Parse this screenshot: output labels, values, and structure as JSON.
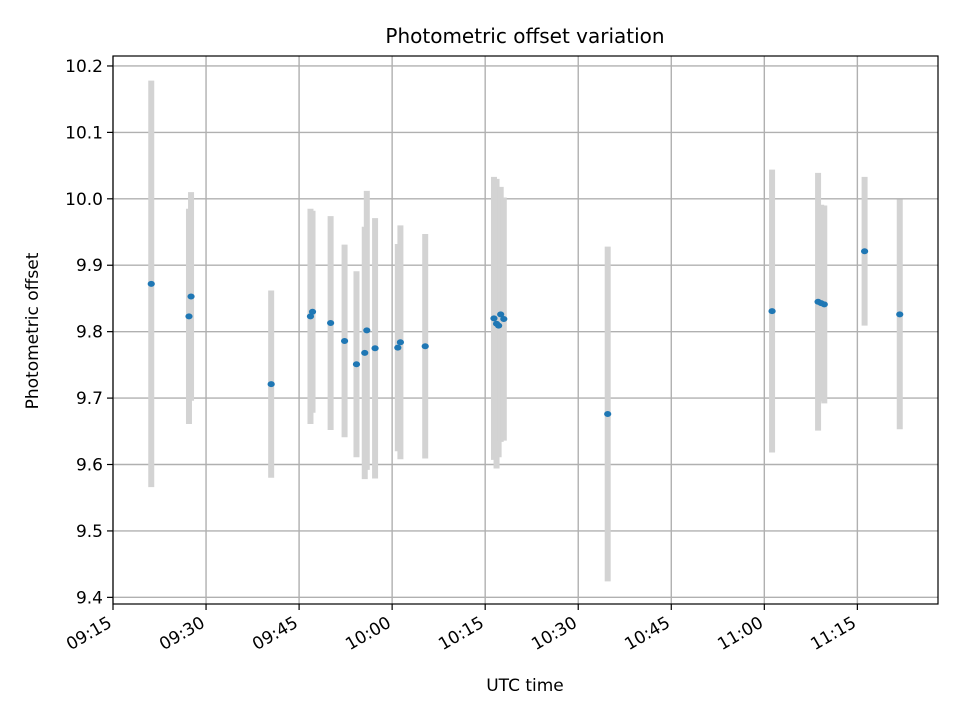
{
  "chart_data": {
    "type": "scatter",
    "title": "Photometric offset variation",
    "xlabel": "UTC time",
    "ylabel": "Photometric offset",
    "x_ticks": [
      "09:15",
      "09:30",
      "09:45",
      "10:00",
      "10:15",
      "10:30",
      "10:45",
      "11:00",
      "11:15"
    ],
    "y_ticks": [
      "9.4",
      "9.5",
      "9.6",
      "9.7",
      "9.8",
      "9.9",
      "10.0",
      "10.1",
      "10.2"
    ],
    "xlim": [
      "09:15",
      "11:28"
    ],
    "ylim": [
      9.39,
      10.215
    ],
    "grid": true,
    "colors": {
      "point": "#1f77b4",
      "errorbar": "#d3d3d3",
      "grid": "#b0b0b0"
    },
    "points": [
      {
        "time": "09:21:10",
        "y": 9.872,
        "yerr": 0.306
      },
      {
        "time": "09:27:15",
        "y": 9.823,
        "yerr": 0.162
      },
      {
        "time": "09:27:35",
        "y": 9.853,
        "yerr": 0.157
      },
      {
        "time": "09:40:30",
        "y": 9.721,
        "yerr": 0.141
      },
      {
        "time": "09:46:50",
        "y": 9.823,
        "yerr": 0.162
      },
      {
        "time": "09:47:10",
        "y": 9.83,
        "yerr": 0.152
      },
      {
        "time": "09:50:05",
        "y": 9.813,
        "yerr": 0.161
      },
      {
        "time": "09:52:20",
        "y": 9.786,
        "yerr": 0.145
      },
      {
        "time": "09:54:15",
        "y": 9.751,
        "yerr": 0.14
      },
      {
        "time": "09:55:35",
        "y": 9.768,
        "yerr": 0.19
      },
      {
        "time": "09:55:55",
        "y": 9.802,
        "yerr": 0.21
      },
      {
        "time": "09:57:15",
        "y": 9.775,
        "yerr": 0.196
      },
      {
        "time": "10:00:55",
        "y": 9.776,
        "yerr": 0.156
      },
      {
        "time": "10:01:20",
        "y": 9.784,
        "yerr": 0.176
      },
      {
        "time": "10:05:20",
        "y": 9.778,
        "yerr": 0.169
      },
      {
        "time": "10:16:25",
        "y": 9.82,
        "yerr": 0.213
      },
      {
        "time": "10:16:50",
        "y": 9.812,
        "yerr": 0.218
      },
      {
        "time": "10:17:10",
        "y": 9.809,
        "yerr": 0.198
      },
      {
        "time": "10:17:30",
        "y": 9.826,
        "yerr": 0.192
      },
      {
        "time": "10:18:00",
        "y": 9.819,
        "yerr": 0.183
      },
      {
        "time": "10:34:45",
        "y": 9.676,
        "yerr": 0.252
      },
      {
        "time": "11:01:15",
        "y": 9.831,
        "yerr": 0.213
      },
      {
        "time": "11:08:40",
        "y": 9.845,
        "yerr": 0.194
      },
      {
        "time": "11:09:10",
        "y": 9.843,
        "yerr": 0.148
      },
      {
        "time": "11:09:40",
        "y": 9.841,
        "yerr": 0.149
      },
      {
        "time": "11:16:10",
        "y": 9.921,
        "yerr": 0.112
      },
      {
        "time": "11:21:50",
        "y": 9.826,
        "yerr": 0.173
      }
    ]
  }
}
